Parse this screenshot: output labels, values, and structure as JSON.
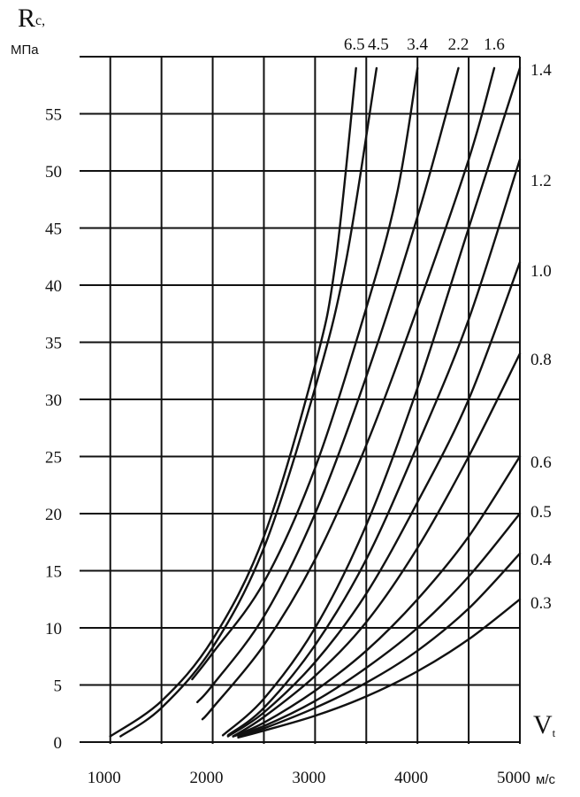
{
  "chart_data": {
    "type": "line",
    "ylabel_main": "R",
    "ylabel_sub": "c,",
    "yunit": "МПа",
    "xlabel_main": "V",
    "xlabel_sub": "t",
    "xunit": "м/с",
    "xlim": [
      700,
      5000
    ],
    "ylim": [
      0,
      60
    ],
    "xticks": [
      1000,
      2000,
      3000,
      4000,
      5000
    ],
    "xtick_labels": [
      "1000",
      "2000",
      "3000",
      "4000",
      "5000"
    ],
    "yticks": [
      0,
      5,
      10,
      15,
      20,
      25,
      30,
      35,
      40,
      45,
      50,
      55
    ],
    "ytick_labels": [
      "0",
      "5",
      "10",
      "15",
      "20",
      "25",
      "30",
      "35",
      "40",
      "45",
      "50",
      "55"
    ],
    "grid": true,
    "series": [
      {
        "name": "6.5",
        "x": [
          1000,
          1500,
          2000,
          2500,
          3000,
          3200,
          3400
        ],
        "y": [
          0.5,
          3.6,
          9.0,
          18.0,
          33.0,
          42.0,
          59.0
        ]
      },
      {
        "name": "4.5",
        "x": [
          1100,
          1500,
          2000,
          2500,
          3000,
          3300,
          3600
        ],
        "y": [
          0.5,
          3.0,
          8.3,
          17.0,
          31.0,
          42.0,
          59.0
        ]
      },
      {
        "name": "3.4",
        "x": [
          1800,
          2000,
          2500,
          3000,
          3500,
          3800,
          4000
        ],
        "y": [
          5.5,
          7.8,
          14.0,
          24.0,
          38.0,
          48.0,
          59.0
        ]
      },
      {
        "name": "2.2",
        "x": [
          1850,
          2000,
          2500,
          3000,
          3500,
          4000,
          4400
        ],
        "y": [
          3.5,
          5.0,
          11.0,
          20.0,
          32.0,
          46.0,
          59.0
        ]
      },
      {
        "name": "1.6",
        "x": [
          1900,
          2000,
          2500,
          3000,
          3500,
          4000,
          4500,
          4750
        ],
        "y": [
          2.0,
          3.0,
          8.5,
          16.0,
          26.0,
          38.0,
          51.0,
          59.0
        ]
      },
      {
        "name": "1.4",
        "x": [
          2100,
          2500,
          3000,
          3500,
          4000,
          4500,
          5000
        ],
        "y": [
          0.6,
          3.8,
          10.0,
          19.0,
          31.0,
          45.0,
          59.0
        ]
      },
      {
        "name": "1.2",
        "x": [
          2150,
          2500,
          3000,
          3500,
          4000,
          4500,
          5000
        ],
        "y": [
          0.6,
          3.0,
          8.5,
          16.0,
          26.0,
          37.0,
          51.0
        ]
      },
      {
        "name": "1.0",
        "x": [
          2150,
          2500,
          3000,
          3500,
          4000,
          4500,
          5000
        ],
        "y": [
          0.5,
          2.6,
          7.0,
          13.0,
          21.0,
          30.0,
          42.0
        ]
      },
      {
        "name": "0.8",
        "x": [
          2200,
          2500,
          3000,
          3500,
          4000,
          4500,
          5000
        ],
        "y": [
          0.5,
          2.2,
          5.8,
          10.5,
          17.0,
          25.0,
          34.0
        ]
      },
      {
        "name": "0.6",
        "x": [
          2200,
          2500,
          3000,
          3500,
          4000,
          4500,
          5000
        ],
        "y": [
          0.5,
          1.7,
          4.5,
          8.0,
          12.5,
          18.0,
          25.0
        ]
      },
      {
        "name": "0.5",
        "x": [
          2200,
          2500,
          3000,
          3500,
          4000,
          4500,
          5000
        ],
        "y": [
          0.5,
          1.4,
          3.6,
          6.5,
          10.0,
          14.5,
          20.0
        ]
      },
      {
        "name": "0.4",
        "x": [
          2250,
          2500,
          3000,
          3500,
          4000,
          4500,
          5000
        ],
        "y": [
          0.5,
          1.2,
          3.0,
          5.2,
          8.0,
          11.7,
          16.5
        ]
      },
      {
        "name": "0.3",
        "x": [
          2250,
          2500,
          3000,
          3500,
          4000,
          4500,
          5000
        ],
        "y": [
          0.4,
          1.0,
          2.3,
          4.0,
          6.2,
          9.0,
          12.5
        ]
      }
    ],
    "top_labels": [
      "6.5",
      "4.5",
      "3.4",
      "2.2",
      "1.6"
    ],
    "right_labels": [
      "1.4",
      "1.2",
      "1.0",
      "0.8",
      "0.6",
      "0.5",
      "0.4",
      "0.3"
    ]
  }
}
